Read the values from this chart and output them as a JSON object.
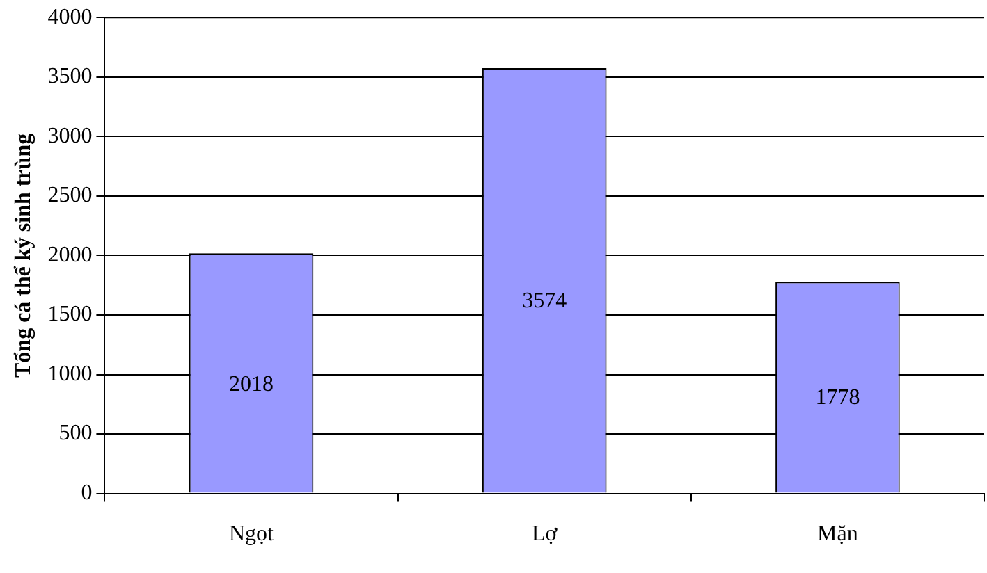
{
  "chart_data": {
    "type": "bar",
    "ylabel": "Tổng cá thể ký sinh trùng",
    "categories": [
      "Ngọt",
      "Lợ",
      "Mặn"
    ],
    "values": [
      2018,
      3574,
      1778
    ],
    "color": "#9999ff",
    "ylim": [
      0,
      4000
    ],
    "yticks": [
      0,
      500,
      1000,
      1500,
      2000,
      2500,
      3000,
      3500,
      4000
    ],
    "grid": "y",
    "data_labels": true,
    "legend": false
  }
}
